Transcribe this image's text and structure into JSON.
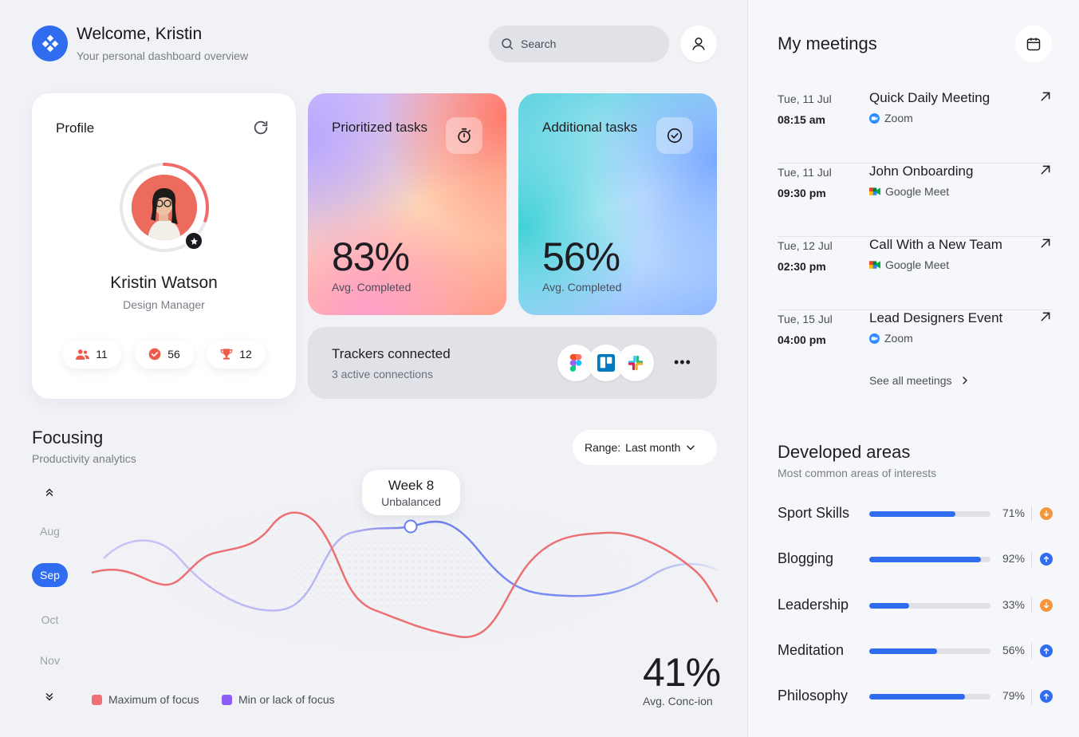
{
  "header": {
    "welcome": "Welcome, Kristin",
    "subtitle": "Your personal dashboard overview",
    "search_placeholder": "Search"
  },
  "profile": {
    "title": "Profile",
    "name": "Kristin Watson",
    "role": "Design Manager",
    "stats": [
      {
        "icon": "people-icon",
        "value": "11"
      },
      {
        "icon": "check-badge-icon",
        "value": "56"
      },
      {
        "icon": "trophy-icon",
        "value": "12"
      }
    ],
    "progress_ring_fraction": 0.3
  },
  "tasks": [
    {
      "title": "Prioritized tasks",
      "value": "83%",
      "sub": "Avg. Completed",
      "icon": "timer-icon"
    },
    {
      "title": "Additional tasks",
      "value": "56%",
      "sub": "Avg. Completed",
      "icon": "check-circle-icon"
    }
  ],
  "trackers": {
    "title": "Trackers connected",
    "sub": "3 active connections",
    "apps": [
      "figma-icon",
      "trello-icon",
      "slack-icon"
    ]
  },
  "focusing": {
    "title": "Focusing",
    "sub": "Productivity analytics",
    "range_label": "Range:",
    "range_value": "Last month",
    "months": [
      "Aug",
      "Sep",
      "Oct",
      "Nov"
    ],
    "active_month": "Sep",
    "tooltip_title": "Week 8",
    "tooltip_sub": "Unbalanced",
    "legend": [
      {
        "label": "Maximum of focus",
        "color": "#f07077"
      },
      {
        "label": "Min or lack of focus",
        "color": "#8b5cf6"
      }
    ],
    "big_value": "41%",
    "big_sub": "Avg. Conc-ion"
  },
  "meetings": {
    "title": "My meetings",
    "items": [
      {
        "date": "Tue, 11 Jul",
        "time": "08:15 am",
        "name": "Quick Daily Meeting",
        "platform": "Zoom",
        "platform_icon": "zoom-icon"
      },
      {
        "date": "Tue, 11 Jul",
        "time": "09:30 pm",
        "name": "John Onboarding",
        "platform": "Google Meet",
        "platform_icon": "google-meet-icon"
      },
      {
        "date": "Tue, 12 Jul",
        "time": "02:30 pm",
        "name": "Call With a New Team",
        "platform": "Google Meet",
        "platform_icon": "google-meet-icon"
      },
      {
        "date": "Tue, 15 Jul",
        "time": "04:00 pm",
        "name": "Lead Designers Event",
        "platform": "Zoom",
        "platform_icon": "zoom-icon"
      }
    ],
    "see_all": "See all meetings"
  },
  "developed_areas": {
    "title": "Developed areas",
    "sub": "Most common areas of interests",
    "items": [
      {
        "name": "Sport Skills",
        "pct": "71%",
        "value": 0.71,
        "trend": "down"
      },
      {
        "name": "Blogging",
        "pct": "92%",
        "value": 0.92,
        "trend": "up"
      },
      {
        "name": "Leadership",
        "pct": "33%",
        "value": 0.33,
        "trend": "down"
      },
      {
        "name": "Meditation",
        "pct": "56%",
        "value": 0.56,
        "trend": "up"
      },
      {
        "name": "Philosophy",
        "pct": "79%",
        "value": 0.79,
        "trend": "up"
      }
    ],
    "colors": {
      "up": "#2f6cf0",
      "down": "#f5953d"
    }
  }
}
